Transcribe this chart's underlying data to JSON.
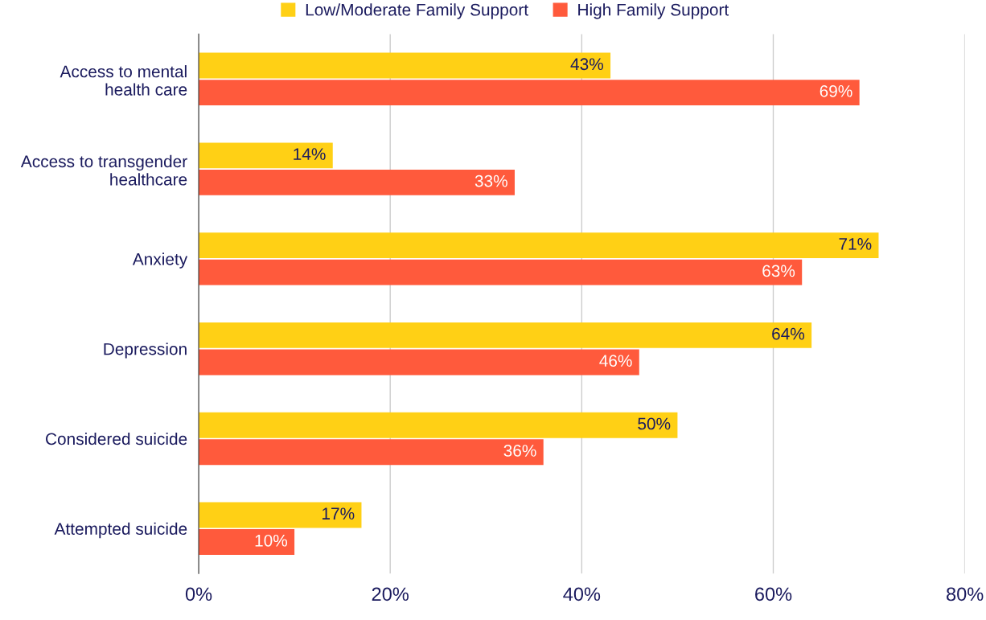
{
  "chart_data": {
    "type": "bar",
    "orientation": "horizontal",
    "categories": [
      "Access to mental\nhealth care",
      "Access to transgender\nhealthcare",
      "Anxiety",
      "Depression",
      "Considered suicide",
      "Attempted suicide"
    ],
    "series": [
      {
        "name": "Low/Moderate Family Support",
        "color": "#ffd015",
        "values": [
          43,
          14,
          71,
          64,
          50,
          17
        ],
        "value_labels": [
          "43%",
          "14%",
          "71%",
          "64%",
          "50%",
          "17%"
        ]
      },
      {
        "name": "High Family Support",
        "color": "#ff5a3c",
        "values": [
          69,
          33,
          63,
          46,
          36,
          10
        ],
        "value_labels": [
          "69%",
          "33%",
          "63%",
          "46%",
          "36%",
          "10%"
        ]
      }
    ],
    "xlim": [
      0,
      80
    ],
    "xticks": [
      {
        "value": 0,
        "label": "0%"
      },
      {
        "value": 20,
        "label": "20%"
      },
      {
        "value": 40,
        "label": "40%"
      },
      {
        "value": 60,
        "label": "60%"
      },
      {
        "value": 80,
        "label": "80%"
      }
    ],
    "grid": "x",
    "legend": "top"
  }
}
